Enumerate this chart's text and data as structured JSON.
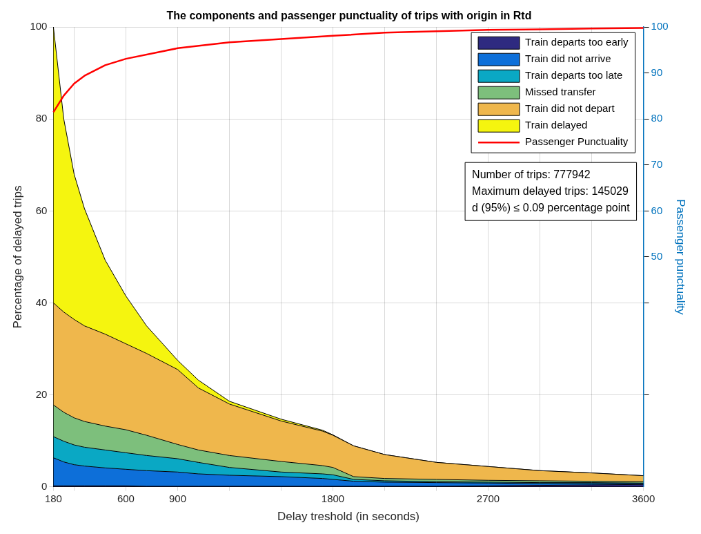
{
  "chart_data": {
    "type": "area",
    "stacked": true,
    "title": "The components and passenger punctuality of trips with origin in Rtd",
    "xlabel": "Delay treshold (in seconds)",
    "ylabel": "Percentage of delayed trips",
    "y2label": "Passenger punctuality",
    "x": [
      180,
      240,
      300,
      360,
      480,
      600,
      720,
      900,
      1020,
      1200,
      1500,
      1740,
      1800,
      1920,
      2100,
      2400,
      2700,
      3000,
      3300,
      3600
    ],
    "series": [
      {
        "name": "Train departs too early",
        "color": "#2e2a80",
        "values": [
          0.2,
          0.2,
          0.2,
          0.2,
          0.2,
          0.2,
          0.1,
          0.1,
          0.1,
          0.1,
          0.1,
          0.1,
          0.1,
          0.1,
          0.1,
          0.1,
          0.2,
          0.3,
          0.4,
          0.5
        ]
      },
      {
        "name": "Train did not arrive",
        "color": "#0d6fd9",
        "values": [
          6.1,
          5.2,
          4.6,
          4.3,
          3.9,
          3.6,
          3.4,
          3.1,
          2.7,
          2.4,
          2.1,
          1.7,
          1.5,
          1.1,
          0.9,
          0.8,
          0.6,
          0.4,
          0.3,
          0.2
        ]
      },
      {
        "name": "Train departs too late",
        "color": "#0aa8c4",
        "values": [
          4.6,
          4.5,
          4.3,
          4.1,
          3.9,
          3.6,
          3.3,
          2.9,
          2.5,
          1.7,
          1.0,
          1.0,
          1.0,
          0.4,
          0.3,
          0.2,
          0.2,
          0.2,
          0.2,
          0.1
        ]
      },
      {
        "name": "Missed transfer",
        "color": "#7dbf7c",
        "values": [
          6.9,
          6.3,
          5.9,
          5.6,
          5.2,
          5.0,
          4.4,
          3.1,
          2.7,
          2.6,
          2.3,
          1.8,
          1.6,
          0.6,
          0.5,
          0.5,
          0.4,
          0.4,
          0.3,
          0.3
        ]
      },
      {
        "name": "Train did not depart",
        "color": "#efb74c",
        "values": [
          22.2,
          21.8,
          21.4,
          20.8,
          20.0,
          18.7,
          17.8,
          16.3,
          13.5,
          11.2,
          8.8,
          7.5,
          7.0,
          6.7,
          5.2,
          3.7,
          3.0,
          2.2,
          1.8,
          1.3
        ]
      },
      {
        "name": "Train delayed",
        "color": "#f5f50f",
        "values": [
          60.0,
          42.0,
          31.6,
          25.5,
          16.1,
          10.4,
          6.0,
          2.0,
          1.7,
          0.6,
          0.4,
          0.2,
          0.1,
          0,
          0,
          0,
          0,
          0,
          0,
          0
        ]
      },
      {
        "name": "Passenger Punctuality",
        "type": "line",
        "axis": "y2",
        "color": "#ff0000",
        "x": [
          180,
          240,
          300,
          360,
          480,
          600,
          900,
          1200,
          1500,
          1800,
          2100,
          2400,
          2700,
          3000,
          3300,
          3600
        ],
        "values": [
          81.5,
          85.1,
          87.7,
          89.4,
          91.7,
          93.1,
          95.4,
          96.7,
          97.4,
          98.1,
          98.8,
          99.1,
          99.4,
          99.5,
          99.7,
          99.8
        ]
      }
    ],
    "xlim": [
      180,
      3600
    ],
    "xticks": [
      180,
      {
        "value": 300,
        "label": null
      },
      600,
      900,
      {
        "value": 1200,
        "label": null
      },
      {
        "value": 1500,
        "label": null
      },
      1800,
      {
        "value": 2100,
        "label": null
      },
      {
        "value": 2400,
        "label": null
      },
      2700,
      {
        "value": 3000,
        "label": null
      },
      {
        "value": 3300,
        "label": null
      },
      3600
    ],
    "ylim": [
      0,
      100
    ],
    "yticks": [
      0,
      20,
      40,
      60,
      80,
      100
    ],
    "y2lim": [
      0,
      100
    ],
    "y2ticks": [
      {
        "value": 20,
        "label": null
      },
      {
        "value": 40,
        "label": null
      },
      50,
      60,
      70,
      80,
      90,
      100
    ],
    "grid": true,
    "legend": "top right",
    "annotations": [
      "Number of trips: 777942",
      "Maximum delayed trips: 145029",
      "d (95%) ≤ 0.09 percentage point"
    ]
  }
}
